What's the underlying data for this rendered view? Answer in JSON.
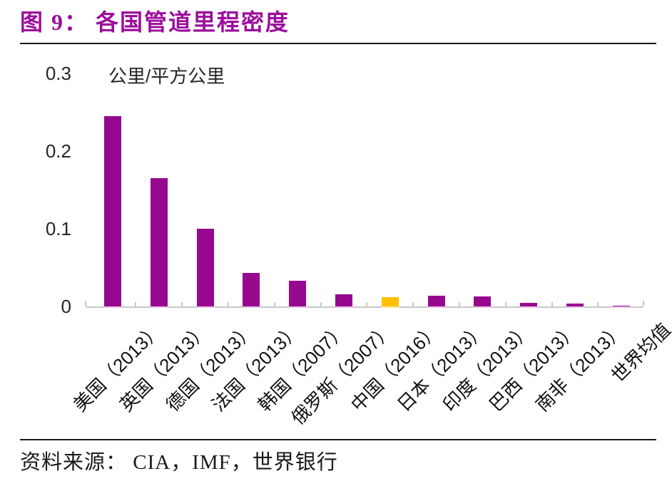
{
  "header": {
    "title": "图 9： 各国管道里程密度"
  },
  "chart_data": {
    "type": "bar",
    "title": "各国管道里程密度",
    "unit_label": "公里/平方公里",
    "categories": [
      "美国（2013）",
      "英国（2013）",
      "德国（2013）",
      "法国（2013）",
      "韩国（2007）",
      "俄罗斯（2007）",
      "中国（2016）",
      "日本（2013）",
      "印度（2013）",
      "巴西（2013）",
      "南非（2013）",
      "世界均值"
    ],
    "values": [
      0.245,
      0.165,
      0.1,
      0.043,
      0.033,
      0.016,
      0.012,
      0.014,
      0.013,
      0.005,
      0.004,
      0.001
    ],
    "highlight_index": 6,
    "ylim": [
      0,
      0.3
    ],
    "ytick_labels": [
      "0",
      "0.1",
      "0.2",
      "0.3"
    ],
    "grid": false,
    "legend": false,
    "x_label_rotation": 45,
    "colors": {
      "bar": "#96098E",
      "bar_edge": "#E8C2E2",
      "highlight": "#FFC000",
      "highlight_edge": "#FFE699",
      "axis": "#C8C8C8",
      "title": "#9C0D9C",
      "text": "#1A1A1A"
    }
  },
  "footer": {
    "source": "资料来源： CIA，IMF，世界银行"
  }
}
